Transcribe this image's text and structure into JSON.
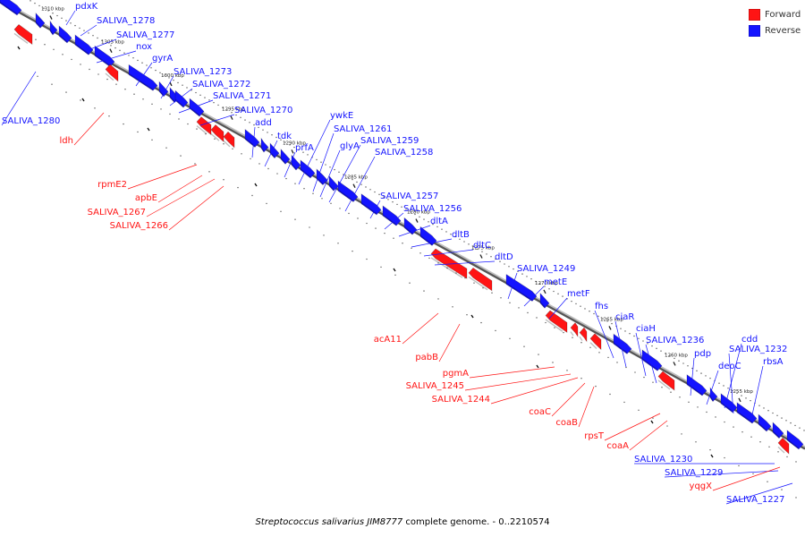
{
  "legend": {
    "forward": {
      "label": "Forward",
      "color": "#ff1414"
    },
    "reverse": {
      "label": "Reverse",
      "color": "#1414ff"
    }
  },
  "caption": {
    "species": "Streptococcus salivarius JIM8777",
    "rest": "complete genome. - 0..2210574"
  },
  "map": {
    "backbone_color": "#555555",
    "tick_labels": [
      {
        "text": "1310 kbp",
        "pos_kbp": 1310
      },
      {
        "text": "1305 kbp",
        "pos_kbp": 1305
      },
      {
        "text": "1300 kbp",
        "pos_kbp": 1300
      },
      {
        "text": "1295 kbp",
        "pos_kbp": 1295
      },
      {
        "text": "1290 kbp",
        "pos_kbp": 1290
      },
      {
        "text": "1285 kbp",
        "pos_kbp": 1285
      },
      {
        "text": "1280 kbp",
        "pos_kbp": 1280
      },
      {
        "text": "1275 kbp",
        "pos_kbp": 1275
      },
      {
        "text": "1270 kbp",
        "pos_kbp": 1270
      },
      {
        "text": "1265 kbp",
        "pos_kbp": 1265
      },
      {
        "text": "1260 kbp",
        "pos_kbp": 1260
      },
      {
        "text": "1255 kbp",
        "pos_kbp": 1255
      }
    ],
    "reverse_genes": [
      "pdxK",
      "SALIVA_1278",
      "SALIVA_1277",
      "nox",
      "gyrA",
      "SALIVA_1273",
      "SALIVA_1272",
      "SALIVA_1271",
      "SALIVA_1270",
      "add",
      "tdk",
      "prfA",
      "ywkE",
      "SALIVA_1261",
      "glyA",
      "SALIVA_1259",
      "SALIVA_1258",
      "SALIVA_1257",
      "SALIVA_1256",
      "dltA",
      "dltB",
      "dltC",
      "dltD",
      "SALIVA_1249",
      "metE",
      "metF",
      "fhs",
      "ciaR",
      "ciaH",
      "SALIVA_1236",
      "pdp",
      "deoC",
      "cdd",
      "SALIVA_1232",
      "rbsA",
      "SALIVA_1230",
      "SALIVA_1229",
      "SALIVA_1227",
      "SALIVA_1280"
    ],
    "forward_genes": [
      "ldh",
      "rpmE2",
      "apbE",
      "SALIVA_1267",
      "SALIVA_1266",
      "acA11",
      "pabB",
      "pgmA",
      "SALIVA_1245",
      "SALIVA_1244",
      "coaC",
      "coaB",
      "rpsT",
      "coaA",
      "yqgX"
    ]
  }
}
